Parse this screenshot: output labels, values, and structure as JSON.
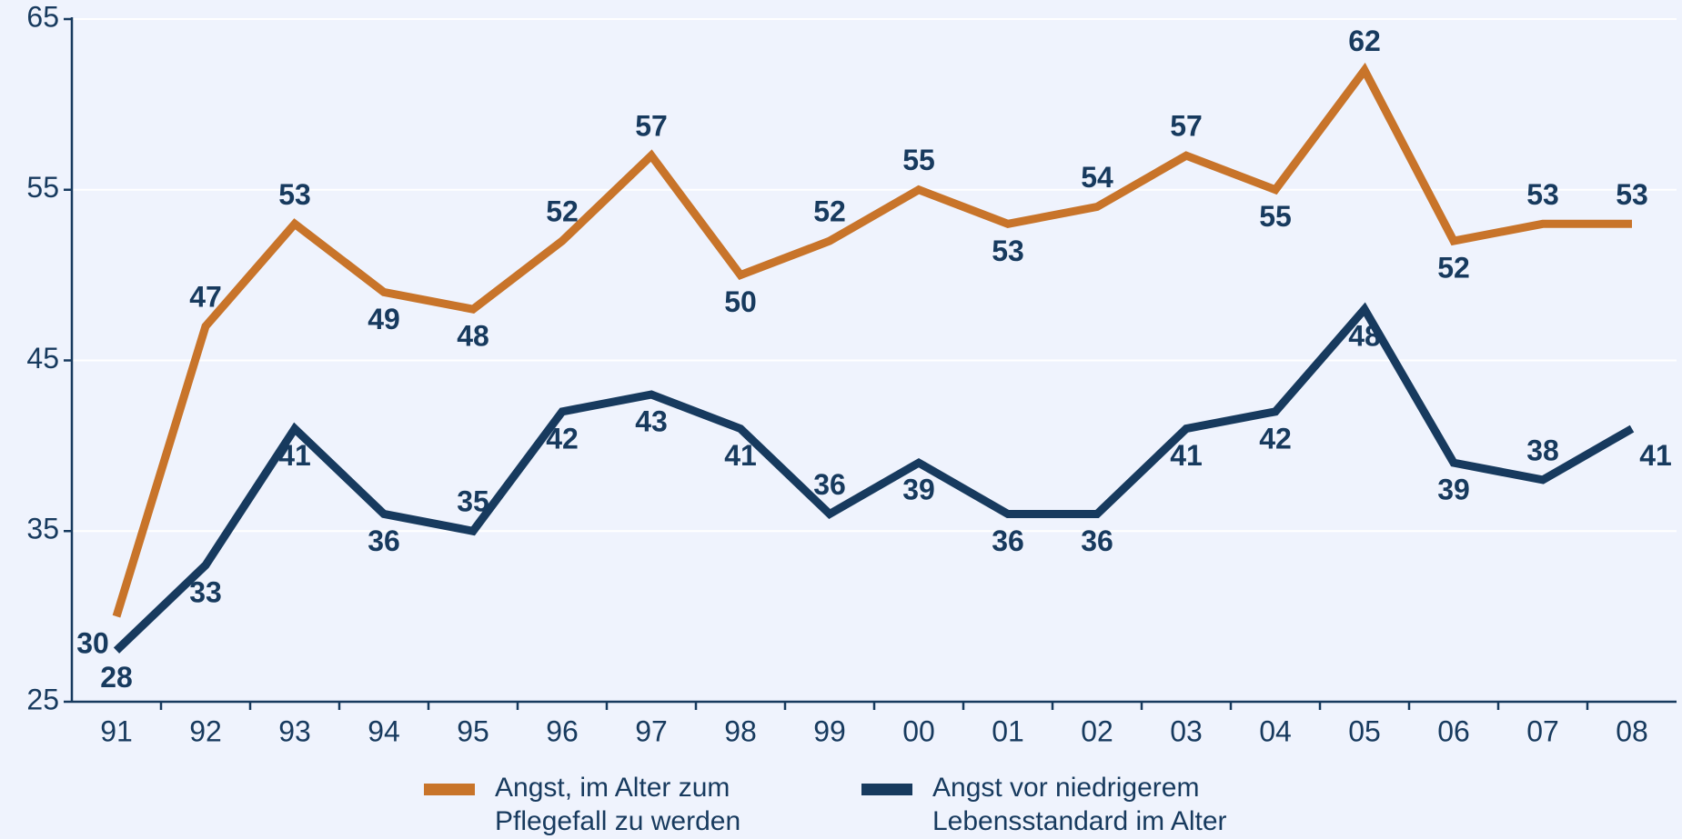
{
  "chart_data": {
    "type": "line",
    "categories": [
      "91",
      "92",
      "93",
      "94",
      "95",
      "96",
      "97",
      "98",
      "99",
      "00",
      "01",
      "02",
      "03",
      "04",
      "05",
      "06",
      "07",
      "08"
    ],
    "series": [
      {
        "name": "Angst, im Alter zum Pflegefall zu werden",
        "color": "#c8742a",
        "values": [
          30,
          47,
          53,
          49,
          48,
          52,
          57,
          50,
          52,
          55,
          53,
          54,
          57,
          55,
          62,
          52,
          53,
          53
        ]
      },
      {
        "name": "Angst vor niedrigerem Lebensstandard im Alter",
        "color": "#173a5e",
        "values": [
          28,
          33,
          41,
          36,
          35,
          42,
          43,
          41,
          36,
          39,
          36,
          36,
          41,
          42,
          48,
          39,
          38,
          41
        ]
      }
    ],
    "ylim": [
      25,
      65
    ],
    "yticks": [
      25,
      35,
      45,
      55,
      65
    ],
    "grid": true
  }
}
